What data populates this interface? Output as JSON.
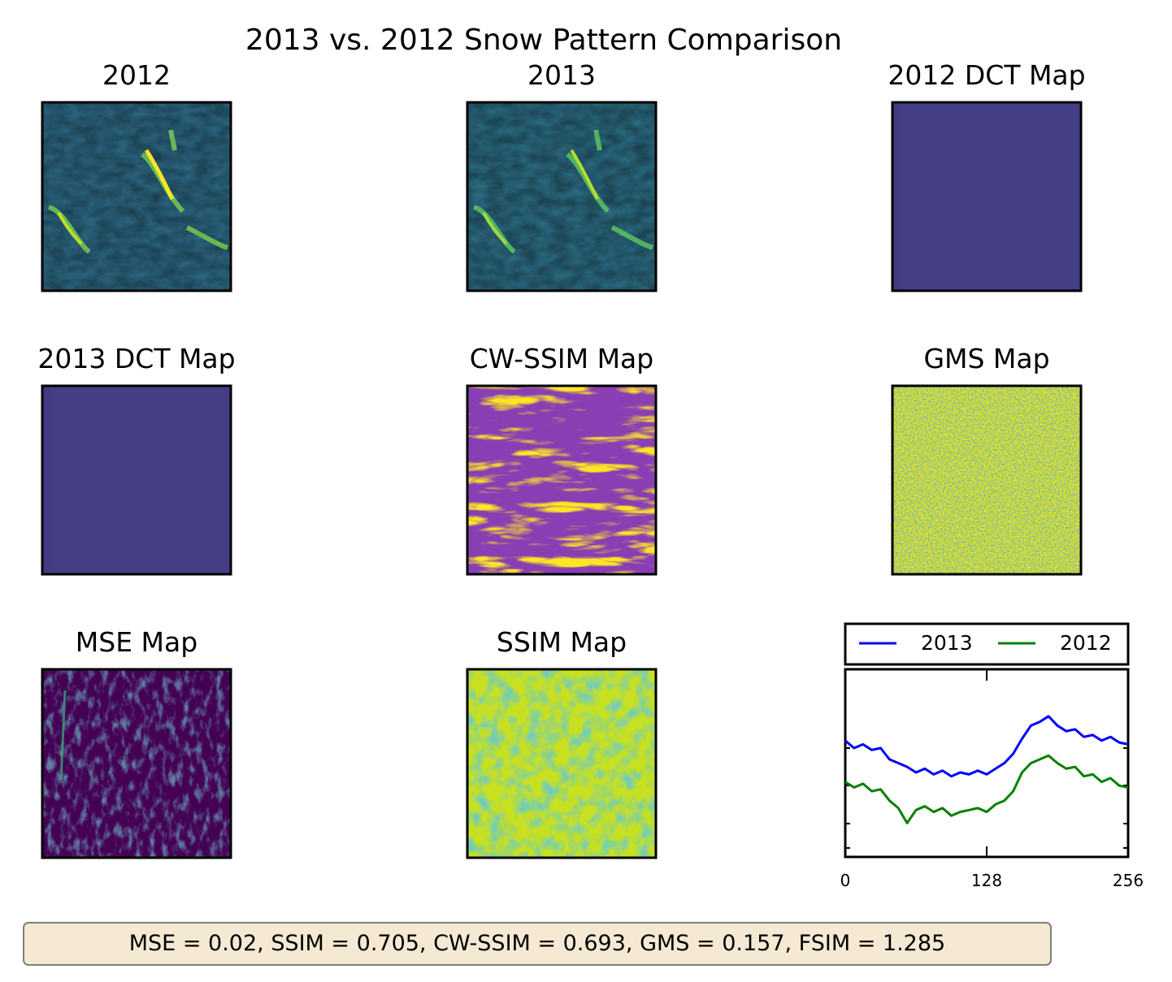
{
  "figure": {
    "suptitle": "2013 vs. 2012 Snow Pattern Comparison",
    "panels": [
      {
        "title": "2012",
        "colormap": "viridis",
        "pattern": "snow-ridges-2012"
      },
      {
        "title": "2013",
        "colormap": "viridis",
        "pattern": "snow-ridges-2013"
      },
      {
        "title": "2012 DCT Map",
        "colormap": "viridis",
        "pattern": "uniform-dct"
      },
      {
        "title": "2013 DCT Map",
        "colormap": "viridis",
        "pattern": "uniform-dct"
      },
      {
        "title": "CW-SSIM Map",
        "colormap": "viridis",
        "pattern": "streaks"
      },
      {
        "title": "GMS Map",
        "colormap": "viridis",
        "pattern": "speckle-high"
      },
      {
        "title": "MSE Map",
        "colormap": "viridis",
        "pattern": "dark-low"
      },
      {
        "title": "SSIM Map",
        "colormap": "viridis",
        "pattern": "mid-high-texture"
      }
    ],
    "stats_text": "MSE = 0.02, SSIM = 0.705, CW-SSIM = 0.693, GMS = 0.157, FSIM = 1.285"
  },
  "chart_data": {
    "type": "line",
    "x_ticks": [
      "0",
      "128",
      "256"
    ],
    "xlim": [
      0,
      256
    ],
    "yticks_labeled": false,
    "legend_placement": "above-plot",
    "series": [
      {
        "name": "2013",
        "color": "#0000ff",
        "x": [
          0,
          8,
          16,
          24,
          32,
          40,
          48,
          56,
          64,
          72,
          80,
          88,
          96,
          104,
          112,
          120,
          128,
          136,
          144,
          152,
          160,
          168,
          176,
          184,
          192,
          200,
          208,
          216,
          224,
          232,
          240,
          248,
          256
        ],
        "values": [
          0.62,
          0.58,
          0.6,
          0.57,
          0.58,
          0.52,
          0.5,
          0.48,
          0.45,
          0.47,
          0.44,
          0.46,
          0.43,
          0.45,
          0.44,
          0.46,
          0.44,
          0.47,
          0.5,
          0.55,
          0.63,
          0.7,
          0.72,
          0.75,
          0.7,
          0.67,
          0.68,
          0.64,
          0.65,
          0.62,
          0.64,
          0.61,
          0.6
        ]
      },
      {
        "name": "2012",
        "color": "#008000",
        "x": [
          0,
          8,
          16,
          24,
          32,
          40,
          48,
          56,
          64,
          72,
          80,
          88,
          96,
          104,
          112,
          120,
          128,
          136,
          144,
          152,
          160,
          168,
          176,
          184,
          192,
          200,
          208,
          216,
          224,
          232,
          240,
          248,
          256
        ],
        "values": [
          0.4,
          0.37,
          0.39,
          0.35,
          0.36,
          0.3,
          0.26,
          0.18,
          0.25,
          0.27,
          0.24,
          0.26,
          0.22,
          0.24,
          0.25,
          0.26,
          0.24,
          0.28,
          0.3,
          0.35,
          0.45,
          0.5,
          0.52,
          0.54,
          0.5,
          0.47,
          0.48,
          0.43,
          0.44,
          0.4,
          0.42,
          0.38,
          0.37
        ]
      }
    ],
    "ylim": [
      0,
      1
    ]
  }
}
